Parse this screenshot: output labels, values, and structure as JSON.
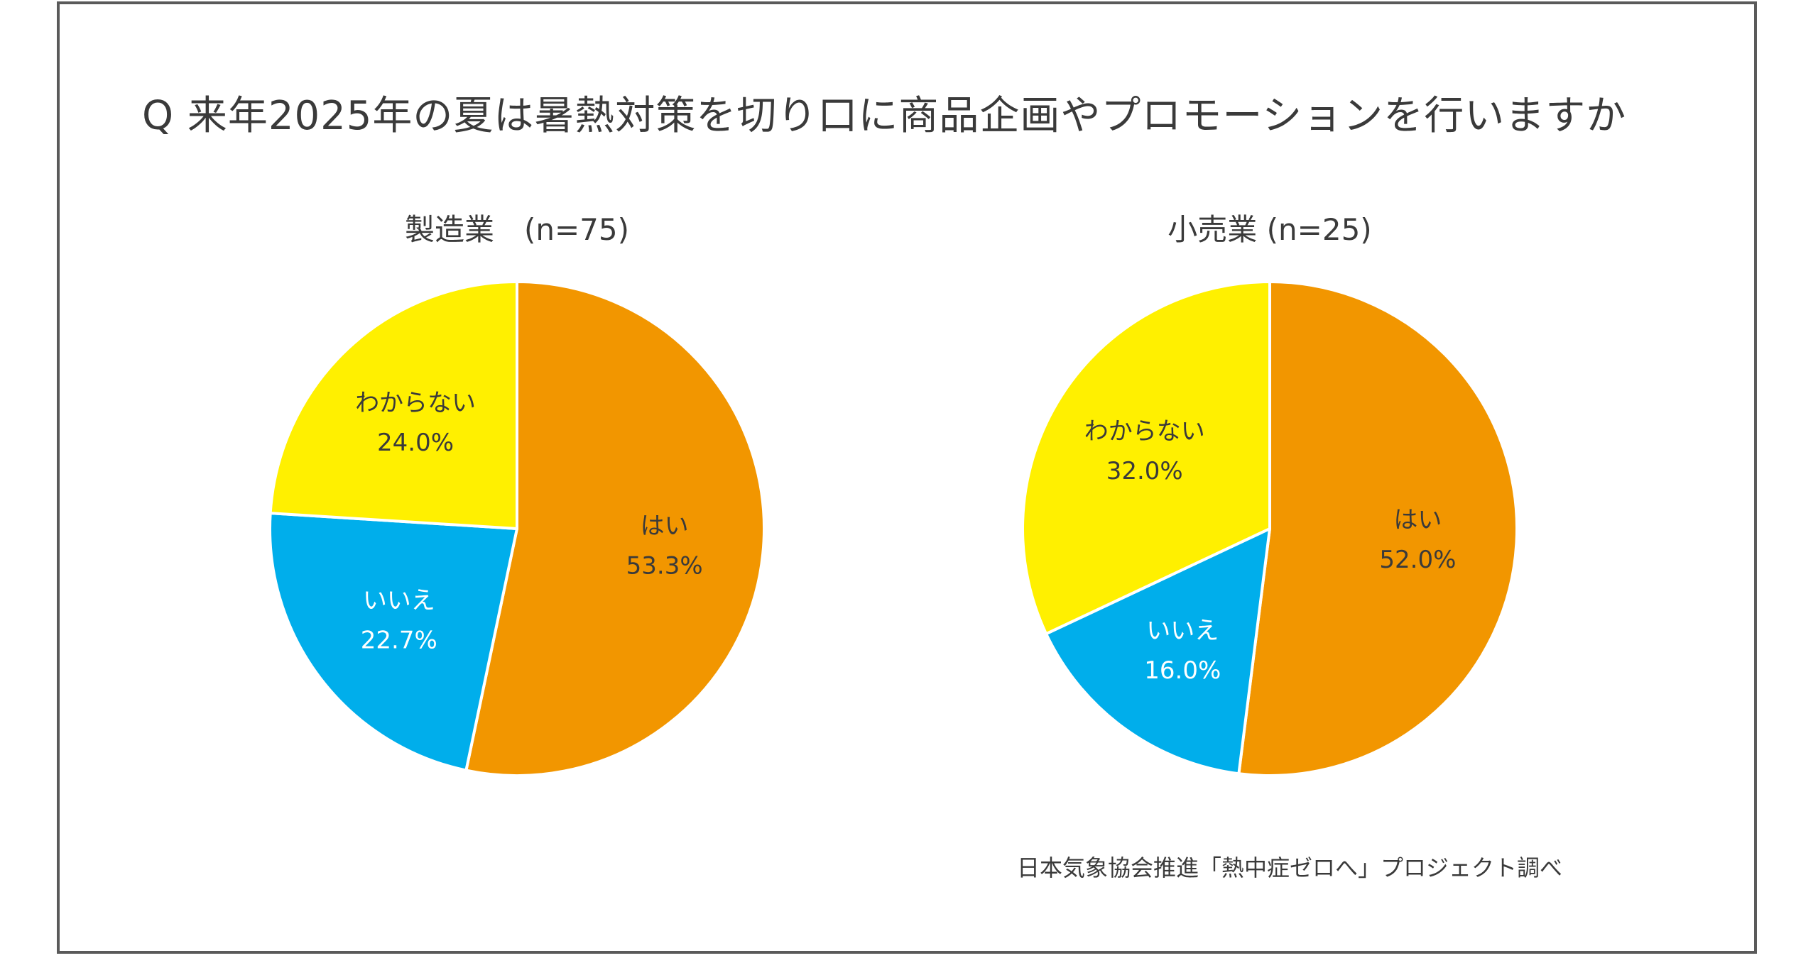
{
  "title": "Q 来年2025年の夏は暑熱対策を切り口に商品企画やプロモーションを行いますか",
  "source": "日本気象協会推進「熱中症ゼロへ」プロジェクト調べ",
  "colors": {
    "はい": "#F29600",
    "いいえ": "#00AEEB",
    "わからない": "#FFF000",
    "text_dark": "#3a3a3a",
    "text_light": "#ffffff",
    "border": "#5a5a5a"
  },
  "chart_data": [
    {
      "type": "pie",
      "title": "製造業　(n=75)",
      "slices": [
        {
          "label": "はい",
          "value": 53.3,
          "display": "53.3%"
        },
        {
          "label": "いいえ",
          "value": 22.7,
          "display": "22.7%"
        },
        {
          "label": "わからない",
          "value": 24.0,
          "display": "24.0%"
        }
      ],
      "start": "12 o'clock",
      "direction": "clockwise"
    },
    {
      "type": "pie",
      "title": "小売業 (n=25)",
      "slices": [
        {
          "label": "はい",
          "value": 52.0,
          "display": "52.0%"
        },
        {
          "label": "いいえ",
          "value": 16.0,
          "display": "16.0%"
        },
        {
          "label": "わからない",
          "value": 32.0,
          "display": "32.0%"
        }
      ],
      "start": "12 o'clock",
      "direction": "clockwise"
    }
  ]
}
